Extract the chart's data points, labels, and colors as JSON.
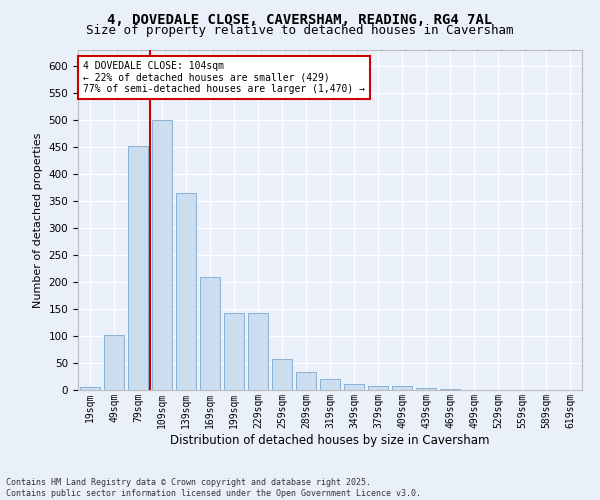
{
  "title_line1": "4, DOVEDALE CLOSE, CAVERSHAM, READING, RG4 7AL",
  "title_line2": "Size of property relative to detached houses in Caversham",
  "xlabel": "Distribution of detached houses by size in Caversham",
  "ylabel": "Number of detached properties",
  "bar_color": "#ccddf0",
  "bar_edge_color": "#7aaad0",
  "bin_labels": [
    "19sqm",
    "49sqm",
    "79sqm",
    "109sqm",
    "139sqm",
    "169sqm",
    "199sqm",
    "229sqm",
    "259sqm",
    "289sqm",
    "319sqm",
    "349sqm",
    "379sqm",
    "409sqm",
    "439sqm",
    "469sqm",
    "499sqm",
    "529sqm",
    "559sqm",
    "589sqm",
    "619sqm"
  ],
  "bar_values": [
    5,
    102,
    452,
    500,
    365,
    210,
    143,
    143,
    57,
    33,
    20,
    12,
    8,
    8,
    3,
    1,
    0,
    0,
    0,
    0,
    0
  ],
  "vline_x": 2.5,
  "ylim": [
    0,
    630
  ],
  "yticks": [
    0,
    50,
    100,
    150,
    200,
    250,
    300,
    350,
    400,
    450,
    500,
    550,
    600
  ],
  "annotation_text": "4 DOVEDALE CLOSE: 104sqm\n← 22% of detached houses are smaller (429)\n77% of semi-detached houses are larger (1,470) →",
  "annotation_box_color": "#ffffff",
  "annotation_box_edge": "#cc0000",
  "vline_color": "#cc0000",
  "footer_text": "Contains HM Land Registry data © Crown copyright and database right 2025.\nContains public sector information licensed under the Open Government Licence v3.0.",
  "bg_color": "#eaf0fa",
  "grid_color": "#ffffff",
  "title_fontsize": 10,
  "subtitle_fontsize": 9,
  "bar_width": 0.85
}
